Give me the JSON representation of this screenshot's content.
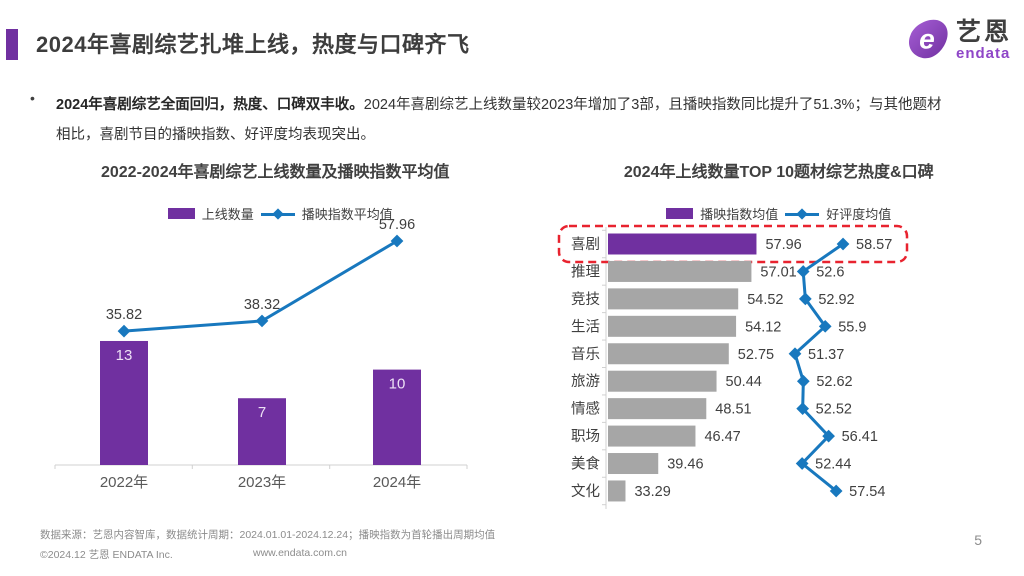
{
  "page": {
    "background": "#FFFFFF",
    "page_number": "5"
  },
  "header": {
    "title": "2024年喜剧综艺扎堆上线，热度与口碑齐飞",
    "accent_color": "#7030A0",
    "logo_cn": "艺恩",
    "logo_en": "endata",
    "logo_color": "#8F46C8"
  },
  "summary": {
    "bullet": "•",
    "bold_text": "2024年喜剧综艺全面回归，热度、口碑双丰收。",
    "normal_text": "2024年喜剧综艺上线数量较2023年增加了3部，且播映指数同比提升了51.3%；与其他题材相比，喜剧节目的播映指数、好评度均表现突出。"
  },
  "colors": {
    "purple": "#7030A0",
    "blue": "#1878BE",
    "gray_bar": "#A6A6A6",
    "highlight_red": "#E8232F",
    "axis": "#D0D0D0",
    "label_dark": "#404040",
    "bar_label_light": "#EDE0F5"
  },
  "chart_data": [
    {
      "type": "bar",
      "combo": "bar+line",
      "title": "2022-2024年喜剧综艺上线数量及播映指数平均值",
      "categories": [
        "2022年",
        "2023年",
        "2024年"
      ],
      "series": [
        {
          "name": "上线数量",
          "type": "bar",
          "values": [
            13,
            7,
            10
          ],
          "color": "#7030A0"
        },
        {
          "name": "播映指数平均值",
          "type": "line",
          "values": [
            35.82,
            38.32,
            57.96
          ],
          "color": "#1878BE"
        }
      ],
      "legend_position": "top",
      "grid": false,
      "bar_axis_min": 0
    },
    {
      "type": "bar",
      "combo": "bar+line",
      "orientation": "horizontal",
      "title": "2024年上线数量TOP 10题材综艺热度&口碑",
      "categories": [
        "喜剧",
        "推理",
        "竞技",
        "生活",
        "音乐",
        "旅游",
        "情感",
        "职场",
        "美食",
        "文化"
      ],
      "series": [
        {
          "name": "播映指数均值",
          "type": "bar",
          "values": [
            57.96,
            57.01,
            54.52,
            54.12,
            52.75,
            50.44,
            48.51,
            46.47,
            39.46,
            33.29
          ],
          "color": "#A6A6A6",
          "highlight_color": "#7030A0"
        },
        {
          "name": "好评度均值",
          "type": "line",
          "values": [
            58.57,
            52.6,
            52.92,
            55.9,
            51.37,
            52.62,
            52.52,
            56.41,
            52.44,
            57.54
          ],
          "color": "#1878BE"
        }
      ],
      "highlight_category": "喜剧",
      "highlight_box_color": "#E8232F",
      "legend_position": "top",
      "grid": false,
      "bar_axis_min": 30
    }
  ],
  "footer": {
    "source": "数据来源：艺恩内容智库，数据统计周期：2024.01.01-2024.12.24；播映指数为首轮播出周期均值",
    "copyright": "©2024.12 艺恩 ENDATA Inc.",
    "website": "www.endata.com.cn"
  }
}
